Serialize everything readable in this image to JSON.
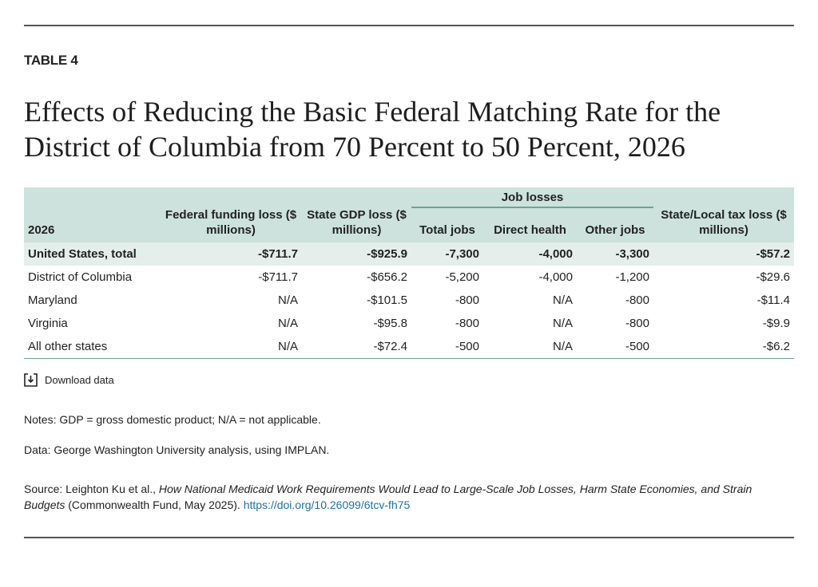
{
  "label": "TABLE 4",
  "title": "Effects of Reducing the Basic Federal Matching Rate for the District of Columbia from 70 Percent to 50 Percent, 2026",
  "table": {
    "group_header": "Job losses",
    "columns": [
      "2026",
      "Federal funding loss ($ millions)",
      "State GDP loss ($ millions)",
      "Total jobs",
      "Direct health",
      "Other jobs",
      "State/Local tax loss ($ millions)"
    ],
    "rows": [
      [
        "United States, total",
        "-$711.7",
        "-$925.9",
        "-7,300",
        "-4,000",
        "-3,300",
        "-$57.2"
      ],
      [
        "District of Columbia",
        "-$711.7",
        "-$656.2",
        "-5,200",
        "-4,000",
        "-1,200",
        "-$29.6"
      ],
      [
        "Maryland",
        "N/A",
        "-$101.5",
        "-800",
        "N/A",
        "-800",
        "-$11.4"
      ],
      [
        "Virginia",
        "N/A",
        "-$95.8",
        "-800",
        "N/A",
        "-800",
        "-$9.9"
      ],
      [
        "All other states",
        "N/A",
        "-$72.4",
        "-500",
        "N/A",
        "-500",
        "-$6.2"
      ]
    ]
  },
  "download": "Download data",
  "notes": "Notes: GDP = gross domestic product; N/A = not applicable.",
  "data_note": "Data: George Washington University analysis, using IMPLAN.",
  "source": {
    "prefix": "Source: Leighton Ku et al., ",
    "work": "How National Medicaid Work Requirements Would Lead to Large-Scale Job Losses, Harm State Economies, and Strain Budgets",
    "publisher": " (Commonwealth Fund, May 2025). ",
    "link": "https://doi.org/10.26099/6tcv-fh75"
  }
}
